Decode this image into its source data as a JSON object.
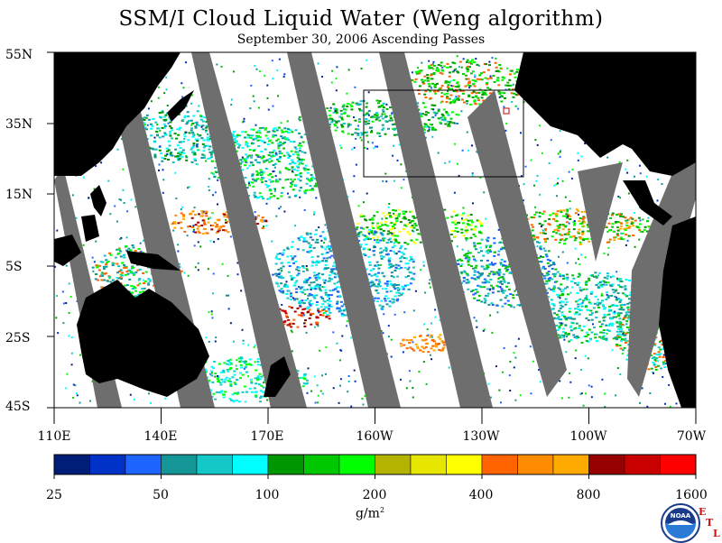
{
  "title": "SSM/I Cloud Liquid Water (Weng algorithm)",
  "subtitle": "September 30, 2006  Ascending Passes",
  "lat_labels": [
    "55N",
    "35N",
    "15N",
    "5S",
    "25S",
    "45S"
  ],
  "lon_labels": [
    "110E",
    "140E",
    "170E",
    "160W",
    "130W",
    "100W",
    "70W"
  ],
  "colorbar": {
    "colors": [
      "#001e78",
      "#0032c8",
      "#1e64ff",
      "#149696",
      "#14c8c8",
      "#00ffff",
      "#009600",
      "#00c800",
      "#00ff00",
      "#b4b400",
      "#e6e600",
      "#ffff00",
      "#ff6400",
      "#ff8c00",
      "#ffaa00",
      "#960000",
      "#c80000",
      "#ff0000"
    ],
    "tick_labels": [
      "25",
      "50",
      "100",
      "200",
      "400",
      "800",
      "1600"
    ]
  },
  "units": "g/m",
  "units_exp": "2",
  "logo": {
    "name": "NOAA",
    "text": "NOAA",
    "side_text": [
      "E",
      "T",
      "L"
    ]
  },
  "colors": {
    "land": "#000000",
    "no_data_swath_gap": "#6e6e6e",
    "clear": "#ffffff"
  }
}
